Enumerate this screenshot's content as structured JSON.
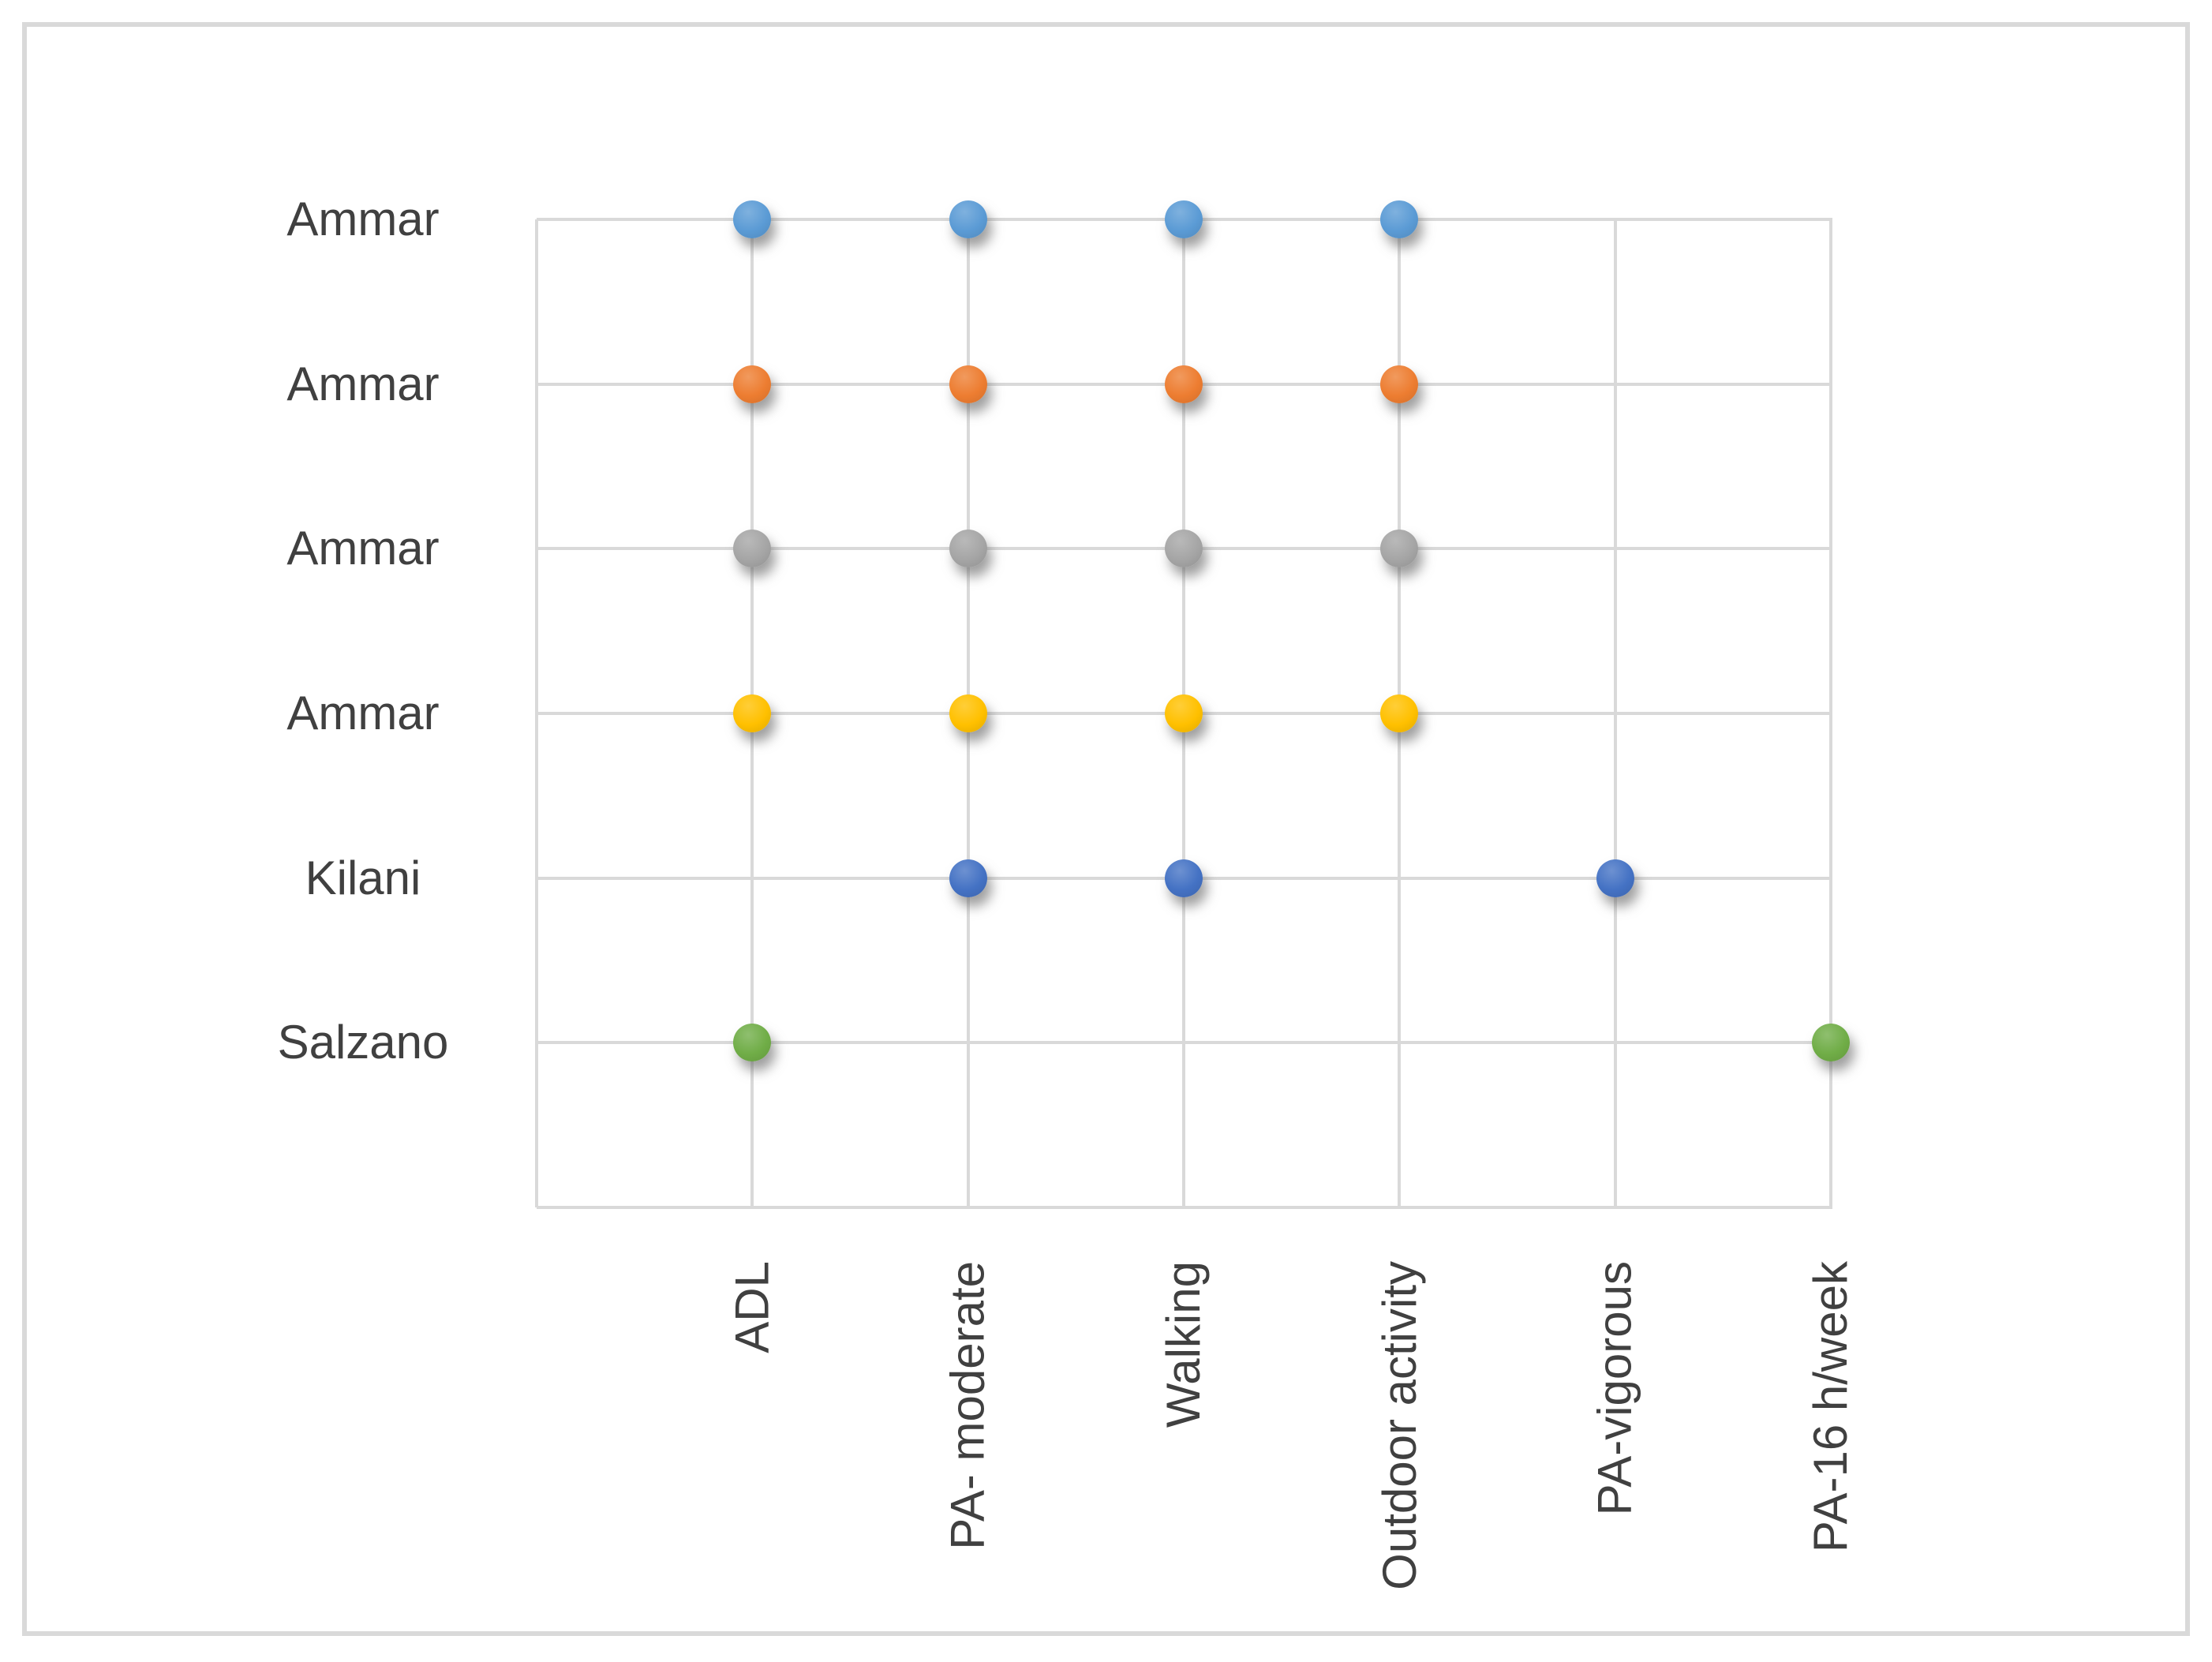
{
  "frame": {
    "border_color": "#D9D9D9",
    "background_color": "#FFFFFF"
  },
  "chart_data": {
    "type": "scatter",
    "title": "",
    "xlabel": "",
    "ylabel": "",
    "grid": "on",
    "gridline_color": "#D9D9D9",
    "text_color": "#404040",
    "legend_position": "none",
    "x_categories": [
      "ADL",
      "PA- moderate",
      "Walking",
      "Outdoor activity",
      "PA-vigorous",
      "PA-16 h/week"
    ],
    "y_categories_top_to_bottom": [
      "Ammar",
      "Ammar",
      "Ammar",
      "Ammar",
      "Kilani",
      "Salzano"
    ],
    "series": [
      {
        "label": "Ammar",
        "row_from_top": 1,
        "color": "#5B9BD5",
        "marked_columns": [
          "ADL",
          "PA- moderate",
          "Walking",
          "Outdoor activity"
        ]
      },
      {
        "label": "Ammar",
        "row_from_top": 2,
        "color": "#ED7D31",
        "marked_columns": [
          "ADL",
          "PA- moderate",
          "Walking",
          "Outdoor activity"
        ]
      },
      {
        "label": "Ammar",
        "row_from_top": 3,
        "color": "#A5A5A5",
        "marked_columns": [
          "ADL",
          "PA- moderate",
          "Walking",
          "Outdoor activity"
        ]
      },
      {
        "label": "Ammar",
        "row_from_top": 4,
        "color": "#FFC000",
        "marked_columns": [
          "ADL",
          "PA- moderate",
          "Walking",
          "Outdoor activity"
        ]
      },
      {
        "label": "Kilani",
        "row_from_top": 5,
        "color": "#4472C4",
        "marked_columns": [
          "PA- moderate",
          "Walking",
          "PA-vigorous"
        ]
      },
      {
        "label": "Salzano",
        "row_from_top": 6,
        "color": "#70AD47",
        "marked_columns": [
          "ADL",
          "PA-16 h/week"
        ]
      }
    ]
  }
}
